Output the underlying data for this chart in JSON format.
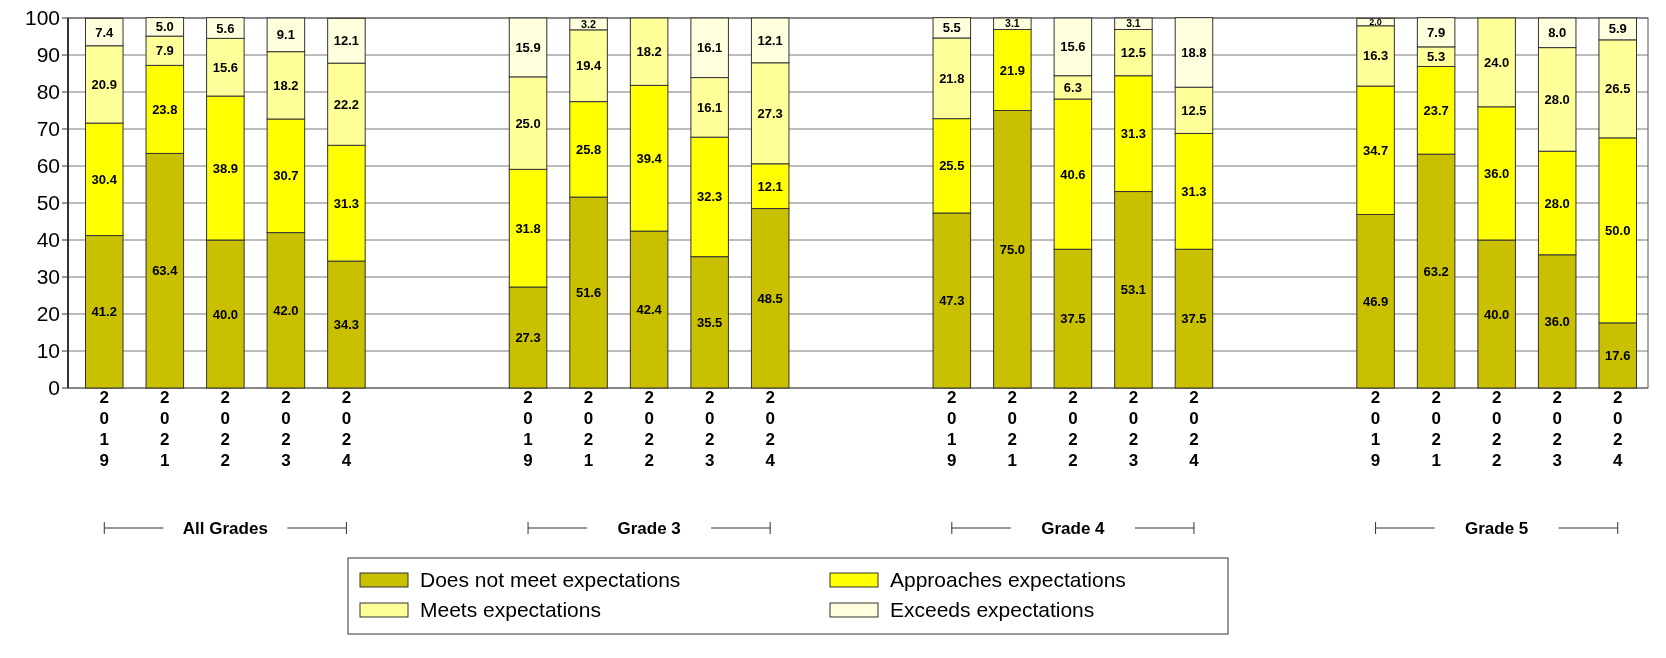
{
  "chart_data": {
    "type": "bar",
    "stacked": true,
    "grid": "y",
    "legend": "bottom",
    "categories": [
      "2019",
      "2021",
      "2022",
      "2023",
      "2024",
      null,
      null,
      "2019",
      "2021",
      "2022",
      "2023",
      "2024",
      null,
      null,
      "2019",
      "2021",
      "2022",
      "2023",
      "2024",
      null,
      null,
      "2019",
      "2021",
      "2022",
      "2023",
      "2024"
    ],
    "annotations": [
      "All Grades",
      "Grade 3",
      "Grade 4",
      "Grade 5"
    ],
    "ylim": [
      0,
      100
    ],
    "yticks": [
      0,
      10,
      20,
      30,
      40,
      50,
      60,
      70,
      80,
      90,
      100
    ],
    "series": [
      {
        "name": "Does not meet expectations",
        "color": "#c8c000",
        "values": [
          41.2,
          63.4,
          40.0,
          42.0,
          34.3,
          null,
          null,
          27.3,
          51.6,
          42.4,
          35.5,
          48.5,
          null,
          null,
          47.3,
          75.0,
          37.5,
          53.1,
          37.5,
          null,
          null,
          46.9,
          63.2,
          40.0,
          36.0,
          17.6
        ],
        "value_labels": [
          "41.2",
          "63.4",
          "40.0",
          "42.0",
          "34.3",
          null,
          null,
          "27.3",
          "51.6",
          "42.4",
          "35.5",
          "48.5",
          null,
          null,
          "47.3",
          "75.0",
          "37.5",
          "53.1",
          "37.5",
          null,
          null,
          "46.9",
          "63.2",
          "40.0",
          "36.0",
          "17.6"
        ]
      },
      {
        "name": "Approaches expectations",
        "color": "#ffff00",
        "values": [
          30.4,
          23.8,
          38.9,
          30.7,
          31.3,
          null,
          null,
          31.8,
          25.8,
          39.4,
          32.3,
          12.1,
          null,
          null,
          25.5,
          21.9,
          40.6,
          31.3,
          31.3,
          null,
          null,
          34.7,
          23.7,
          36.0,
          28.0,
          50.0
        ],
        "value_labels": [
          "30.4",
          "23.8",
          "38.9",
          "30.7",
          "31.3",
          null,
          null,
          "31.8",
          "25.8",
          "39.4",
          "32.3",
          "12.1",
          null,
          null,
          "25.5",
          "21.9",
          "40.6",
          "31.3",
          "31.3",
          null,
          null,
          "34.7",
          "23.7",
          "36.0",
          "28.0",
          "50.0"
        ]
      },
      {
        "name": "Meets expectations",
        "color": "#ffff99",
        "values": [
          20.9,
          7.9,
          15.6,
          18.2,
          22.2,
          null,
          null,
          25.0,
          19.4,
          18.2,
          16.1,
          27.3,
          null,
          null,
          21.8,
          null,
          6.3,
          12.5,
          12.5,
          null,
          null,
          16.3,
          5.3,
          24.0,
          28.0,
          26.5
        ],
        "value_labels": [
          "20.9",
          "7.9",
          "15.6",
          "18.2",
          "22.2",
          null,
          null,
          "25.0",
          "19.4",
          "18.2",
          "16.1",
          "27.3",
          null,
          null,
          "21.8",
          null,
          "6.3",
          "12.5",
          "12.5",
          null,
          null,
          "16.3",
          "5.3",
          "24.0",
          "28.0",
          "26.5"
        ]
      },
      {
        "name": "Exceeds expectations",
        "color": "#ffffdd",
        "values": [
          7.4,
          5.0,
          5.6,
          9.1,
          12.1,
          null,
          null,
          15.9,
          3.2,
          null,
          16.1,
          12.1,
          null,
          null,
          5.5,
          3.1,
          15.6,
          3.1,
          18.8,
          null,
          null,
          2.0,
          7.9,
          null,
          8.0,
          5.9
        ],
        "value_labels": [
          "7.4",
          "5.0",
          "5.6",
          "9.1",
          "12.1",
          null,
          null,
          "15.9",
          "3.2",
          null,
          "16.1",
          "12.1",
          null,
          null,
          "5.5",
          "3.1",
          "15.6",
          "3.1",
          "18.8",
          null,
          null,
          "2.0",
          "7.9",
          null,
          "8.0",
          "5.9"
        ]
      }
    ]
  }
}
